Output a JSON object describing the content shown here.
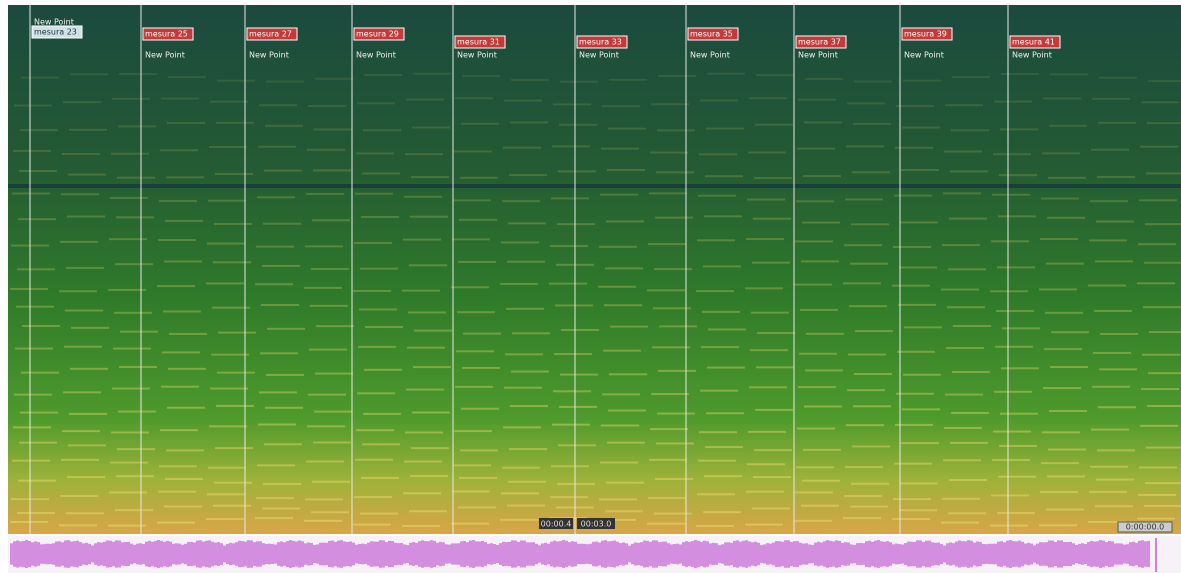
{
  "markers": [
    {
      "label": "mesura 23",
      "sub": "New Point"
    },
    {
      "label": "mesura 25",
      "sub": "New Point"
    },
    {
      "label": "mesura 27",
      "sub": "New Point"
    },
    {
      "label": "mesura 29",
      "sub": "New Point"
    },
    {
      "label": "mesura 31",
      "sub": "New Point"
    },
    {
      "label": "mesura 33",
      "sub": "New Point"
    },
    {
      "label": "mesura 35",
      "sub": "New Point"
    },
    {
      "label": "mesura 37",
      "sub": "New Point"
    },
    {
      "label": "mesura 39",
      "sub": "New Point"
    },
    {
      "label": "mesura 41",
      "sub": "New Point"
    }
  ],
  "time_labels": [
    "00:00.4",
    "00:03.0"
  ],
  "corner_label": "0:00:00.0"
}
